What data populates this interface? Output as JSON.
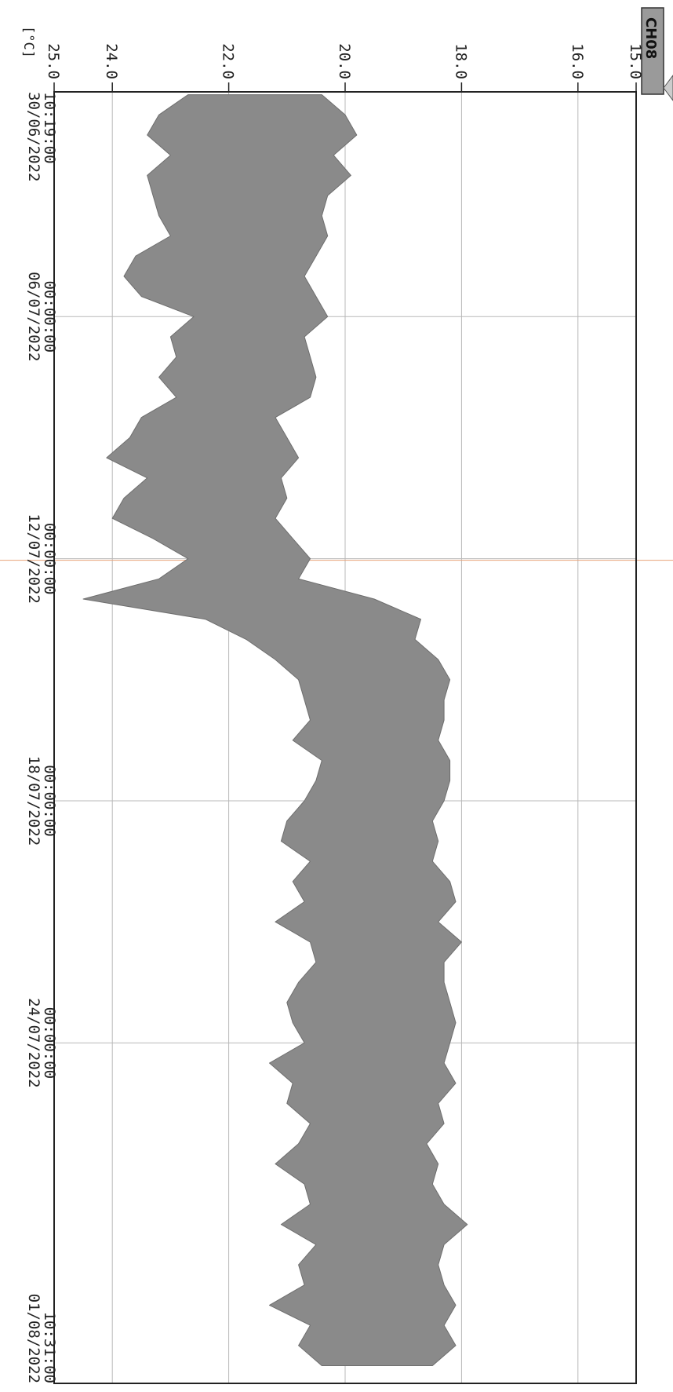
{
  "chart_data": {
    "type": "line",
    "orientation": "rotated-90-clockwise",
    "channel": "CH08",
    "ylabel": "[°C]",
    "ylim": [
      15.0,
      25.0
    ],
    "yticks": [
      {
        "value": 15,
        "label": "15.0"
      },
      {
        "value": 16,
        "label": "16.0"
      },
      {
        "value": 18,
        "label": "18.0"
      },
      {
        "value": 20,
        "label": "20.0"
      },
      {
        "value": 22,
        "label": "22.0"
      },
      {
        "value": 24,
        "label": "24.0"
      },
      {
        "value": 25,
        "label": "25.0"
      }
    ],
    "xlim": [
      "2022-06-30T10:19:00",
      "2022-08-01T10:31:00"
    ],
    "xticks": [
      {
        "value": "2022-06-30T10:19:00",
        "time": "10:19:00",
        "date": "30/06/2022"
      },
      {
        "value": "2022-07-06T00:00:00",
        "time": "00:00:00",
        "date": "06/07/2022"
      },
      {
        "value": "2022-07-12T00:00:00",
        "time": "00:00:00",
        "date": "12/07/2022"
      },
      {
        "value": "2022-07-18T00:00:00",
        "time": "00:00:00",
        "date": "18/07/2022"
      },
      {
        "value": "2022-07-24T00:00:00",
        "time": "00:00:00",
        "date": "24/07/2022"
      },
      {
        "value": "2022-08-01T10:31:00",
        "time": "10:31:00",
        "date": "01/08/2022"
      }
    ],
    "grid": true,
    "series_color": "#8a8a8a",
    "series": [
      {
        "x": [
          "2022-06-30T12:00",
          "2022-07-01T00:00",
          "2022-07-01T12:00",
          "2022-07-02T00:00",
          "2022-07-02T12:00",
          "2022-07-03T00:00",
          "2022-07-03T12:00",
          "2022-07-04T00:00",
          "2022-07-04T12:00",
          "2022-07-05T00:00",
          "2022-07-05T12:00",
          "2022-07-06T00:00",
          "2022-07-06T12:00",
          "2022-07-07T00:00",
          "2022-07-07T12:00",
          "2022-07-08T00:00",
          "2022-07-08T12:00",
          "2022-07-09T00:00",
          "2022-07-09T12:00",
          "2022-07-10T00:00",
          "2022-07-10T12:00",
          "2022-07-11T00:00",
          "2022-07-11T12:00",
          "2022-07-12T00:00",
          "2022-07-12T12:00",
          "2022-07-13T00:00",
          "2022-07-13T12:00",
          "2022-07-14T00:00",
          "2022-07-14T12:00",
          "2022-07-15T00:00",
          "2022-07-15T12:00",
          "2022-07-16T00:00",
          "2022-07-16T12:00",
          "2022-07-17T00:00",
          "2022-07-17T12:00",
          "2022-07-18T00:00",
          "2022-07-18T12:00",
          "2022-07-19T00:00",
          "2022-07-19T12:00",
          "2022-07-20T00:00",
          "2022-07-20T12:00",
          "2022-07-21T00:00",
          "2022-07-21T12:00",
          "2022-07-22T00:00",
          "2022-07-22T12:00",
          "2022-07-23T00:00",
          "2022-07-23T12:00",
          "2022-07-24T00:00",
          "2022-07-24T12:00",
          "2022-07-25T00:00",
          "2022-07-25T12:00",
          "2022-07-26T00:00",
          "2022-07-26T12:00",
          "2022-07-27T00:00",
          "2022-07-27T12:00",
          "2022-07-28T00:00",
          "2022-07-28T12:00",
          "2022-07-29T00:00",
          "2022-07-29T12:00",
          "2022-07-30T00:00",
          "2022-07-30T12:00",
          "2022-07-31T00:00",
          "2022-07-31T12:00",
          "2022-08-01T00:00"
        ],
        "min": [
          20.4,
          20.0,
          19.8,
          20.2,
          19.9,
          20.3,
          20.4,
          20.3,
          20.5,
          20.7,
          20.5,
          20.3,
          20.7,
          20.6,
          20.5,
          20.6,
          21.2,
          21.0,
          20.8,
          21.1,
          21.0,
          21.2,
          20.9,
          20.6,
          20.8,
          19.5,
          18.7,
          18.8,
          18.4,
          18.2,
          18.3,
          18.3,
          18.4,
          18.2,
          18.2,
          18.3,
          18.5,
          18.4,
          18.5,
          18.2,
          18.1,
          18.4,
          18.0,
          18.3,
          18.3,
          18.2,
          18.1,
          18.2,
          18.3,
          18.1,
          18.4,
          18.3,
          18.6,
          18.4,
          18.5,
          18.3,
          17.9,
          18.3,
          18.4,
          18.3,
          18.1,
          18.3,
          18.1,
          18.5
        ],
        "max": [
          22.7,
          23.2,
          23.4,
          23.0,
          23.4,
          23.3,
          23.2,
          23.0,
          23.6,
          23.8,
          23.5,
          22.6,
          23.0,
          22.9,
          23.2,
          22.9,
          23.5,
          23.7,
          24.1,
          23.4,
          23.8,
          24.0,
          23.3,
          22.7,
          23.2,
          24.5,
          22.4,
          21.7,
          21.2,
          20.8,
          20.7,
          20.6,
          20.9,
          20.4,
          20.5,
          20.7,
          21.0,
          21.1,
          20.6,
          20.9,
          20.7,
          21.2,
          20.6,
          20.5,
          20.8,
          21.0,
          20.9,
          20.7,
          21.3,
          20.9,
          21.0,
          20.6,
          20.8,
          21.2,
          20.7,
          20.6,
          21.1,
          20.5,
          20.8,
          20.7,
          21.3,
          20.6,
          20.8,
          20.4
        ]
      }
    ]
  }
}
